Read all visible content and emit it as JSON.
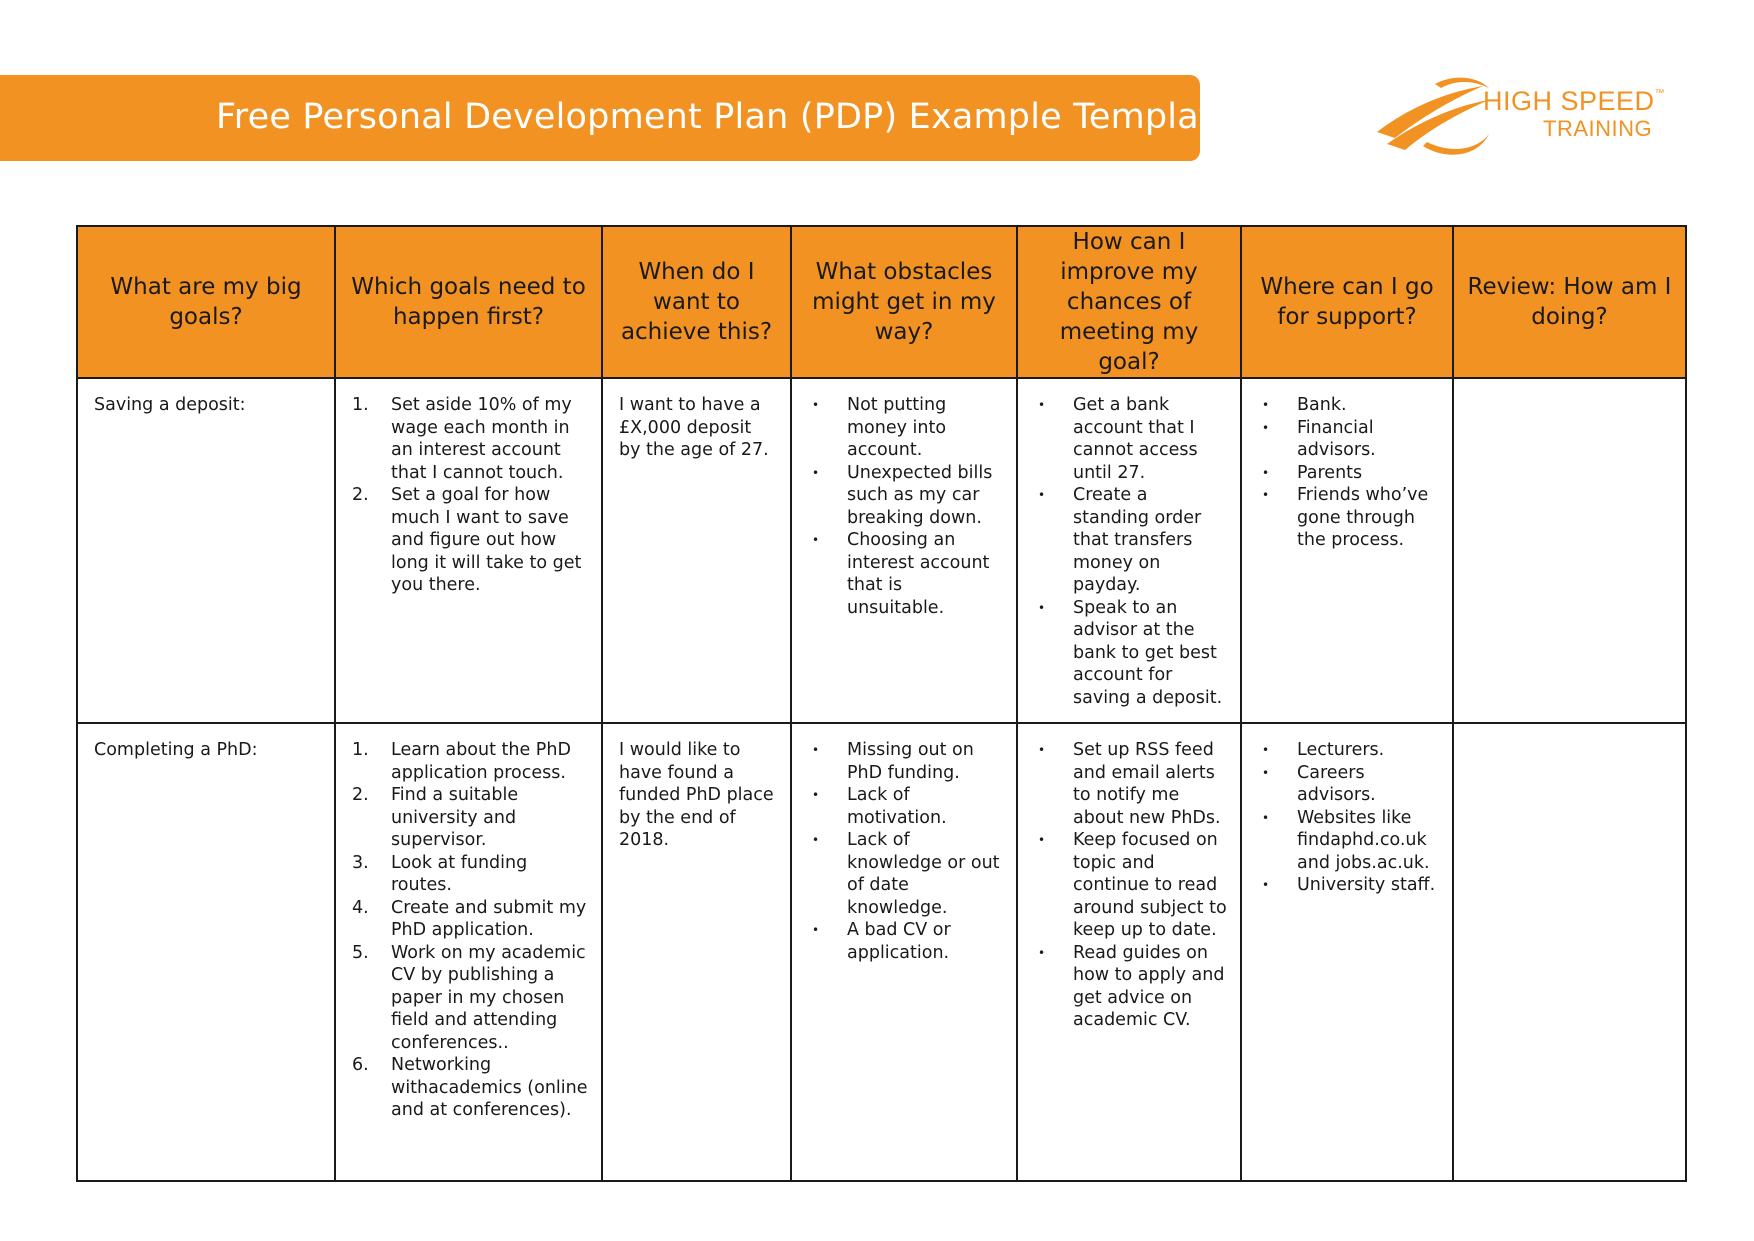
{
  "header": {
    "title": "Free Personal Development Plan (PDP) Example Template"
  },
  "logo": {
    "line1": "HIGH SPEED",
    "tm": "™",
    "line2": "TRAINING",
    "color": "#f29222"
  },
  "colors": {
    "accent": "#f29222",
    "text": "#1a1a1a"
  },
  "table": {
    "headers": [
      "What are my big goals?",
      "Which goals need to happen first?",
      "When do I want to achieve this?",
      "What obstacles might get in my way?",
      "How can I improve my chances of meeting my goal?",
      "Where can I go for support?",
      "Review: How am I doing?"
    ],
    "rows": [
      {
        "goal": "Saving a deposit:",
        "first_steps": [
          {
            "num": "1.",
            "text": "Set aside 10% of my wage each month in an interest account that I cannot touch."
          },
          {
            "num": "2.",
            "text": "Set a goal for how much I want to save and figure out how long it will take to get you there."
          }
        ],
        "when": "I want to have a £X,000 deposit by the age of 27.",
        "obstacles": [
          {
            "bullet": "•",
            "text": "Not putting money into account."
          },
          {
            "bullet": "•",
            "text": "Unexpected bills such as my car breaking down."
          },
          {
            "bullet": "•",
            "text": "Choosing an interest account that is unsuitable."
          }
        ],
        "improve": [
          {
            "bullet": "•",
            "text": "Get a bank account that I cannot access until 27."
          },
          {
            "bullet": "•",
            "text": "Create a standing order that transfers money on payday."
          },
          {
            "bullet": "•",
            "text": "Speak to an advisor at the bank to get best account for saving a deposit."
          }
        ],
        "support": [
          {
            "bullet": "•",
            "text": "Bank."
          },
          {
            "bullet": "•",
            "text": "Financial advisors."
          },
          {
            "bullet": "•",
            "text": "Parents"
          },
          {
            "bullet": "•",
            "text": "Friends who’ve gone through the process."
          }
        ],
        "review": ""
      },
      {
        "goal": "Completing a PhD:",
        "first_steps": [
          {
            "num": "1.",
            "text": "Learn about the PhD application process."
          },
          {
            "num": "2.",
            "text": "Find a suitable university and supervisor."
          },
          {
            "num": "3.",
            "text": "Look at funding routes."
          },
          {
            "num": "4.",
            "text": "Create and submit my PhD application."
          },
          {
            "num": "5.",
            "text": "Work on my academic CV by publishing a paper in my chosen field and attending conferences.."
          },
          {
            "num": "6.",
            "text": "Networking withacademics (online and at conferences)."
          }
        ],
        "when": "I would like to have found a funded PhD place by the end of 2018.",
        "obstacles": [
          {
            "bullet": "•",
            "text": "Missing out on PhD funding."
          },
          {
            "bullet": "•",
            "text": "Lack of motivation."
          },
          {
            "bullet": "•",
            "text": "Lack of knowledge or out of date knowledge."
          },
          {
            "bullet": "•",
            "text": "A bad CV or application."
          }
        ],
        "improve": [
          {
            "bullet": "•",
            "text": "Set up RSS feed and email alerts to notify me about new PhDs."
          },
          {
            "bullet": "•",
            "text": "Keep focused on topic and continue to read around subject to keep up to date."
          },
          {
            "bullet": "•",
            "text": "Read guides on how to apply and get advice on academic CV."
          }
        ],
        "support": [
          {
            "bullet": "•",
            "text": "Lecturers."
          },
          {
            "bullet": "•",
            "text": "Careers advisors."
          },
          {
            "bullet": "•",
            "text": "Websites like findaphd.co.uk and jobs.ac.uk."
          },
          {
            "bullet": "•",
            "text": "University staff."
          }
        ],
        "review": ""
      }
    ]
  }
}
